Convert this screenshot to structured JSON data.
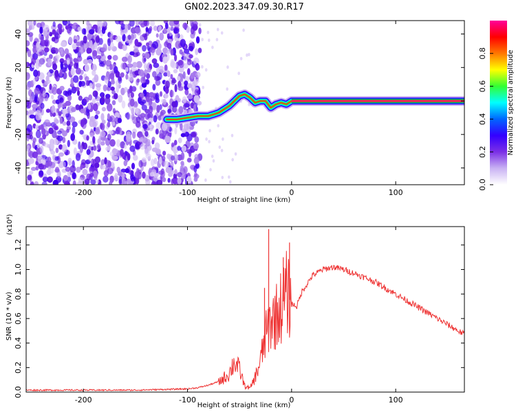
{
  "title": "GN02.2023.347.09.30.R17",
  "chart_data": [
    {
      "type": "heatmap",
      "title": "GN02.2023.347.09.30.R17",
      "xlabel": "Height of straight line (km)",
      "ylabel": "Frequency (Hz)",
      "xlim": [
        -255,
        166
      ],
      "ylim": [
        -50,
        48
      ],
      "xticks": [
        -200,
        -100,
        0,
        100
      ],
      "yticks": [
        -40,
        -20,
        0,
        20,
        40
      ],
      "colorbar": {
        "label": "Normalized spectral amplitude",
        "range": [
          0,
          1
        ],
        "ticks": [
          0.0,
          0.2,
          0.4,
          0.6,
          0.8
        ],
        "colors": [
          "#ffffff",
          "#c9b2f3",
          "#7b2fe6",
          "#3300ff",
          "#0066ff",
          "#00ffff",
          "#33ff33",
          "#ffff00",
          "#ff7700",
          "#ff0000",
          "#ff0099"
        ]
      },
      "noise_region": {
        "x_from": -255,
        "x_to": -88
      },
      "signal_track": {
        "x": [
          -120,
          -110,
          -100,
          -90,
          -80,
          -70,
          -60,
          -55,
          -50,
          -45,
          -40,
          -35,
          -30,
          -25,
          -20,
          -15,
          -10,
          -5,
          0,
          50,
          100,
          166
        ],
        "frequency": [
          -11,
          -11,
          -10,
          -9,
          -9,
          -7,
          -3,
          0,
          3,
          4,
          2,
          -1,
          0,
          0,
          -4,
          -2,
          -1,
          -2,
          0,
          0,
          0,
          0
        ]
      }
    },
    {
      "type": "line",
      "xlabel": "Height of straight line (km)",
      "ylabel": "SNR (10 * v/v)",
      "y_multiplier": "(x10⁴)",
      "xlim": [
        -255,
        166
      ],
      "ylim": [
        0.0,
        1.35
      ],
      "xticks": [
        -200,
        -100,
        0,
        100
      ],
      "yticks": [
        0.0,
        0.2,
        0.4,
        0.6,
        0.8,
        1.0,
        1.2
      ],
      "color": "#ee3333",
      "x": [
        -255,
        -200,
        -150,
        -100,
        -90,
        -80,
        -70,
        -60,
        -55,
        -50,
        -45,
        -40,
        -35,
        -30,
        -25,
        -20,
        -15,
        -10,
        -5,
        0,
        5,
        10,
        20,
        30,
        40,
        50,
        60,
        80,
        100,
        120,
        140,
        166
      ],
      "y": [
        0.01,
        0.01,
        0.01,
        0.02,
        0.03,
        0.05,
        0.08,
        0.15,
        0.25,
        0.18,
        0.05,
        0.03,
        0.12,
        0.25,
        0.45,
        0.58,
        0.62,
        0.7,
        0.8,
        0.72,
        0.7,
        0.82,
        0.95,
        1.0,
        1.02,
        1.0,
        0.97,
        0.9,
        0.8,
        0.7,
        0.6,
        0.47
      ],
      "spikes": [
        {
          "x": -22,
          "y": 1.33
        },
        {
          "x": -26,
          "y": 0.85
        },
        {
          "x": -2,
          "y": 1.22
        },
        {
          "x": -8,
          "y": 1.1
        }
      ]
    }
  ]
}
